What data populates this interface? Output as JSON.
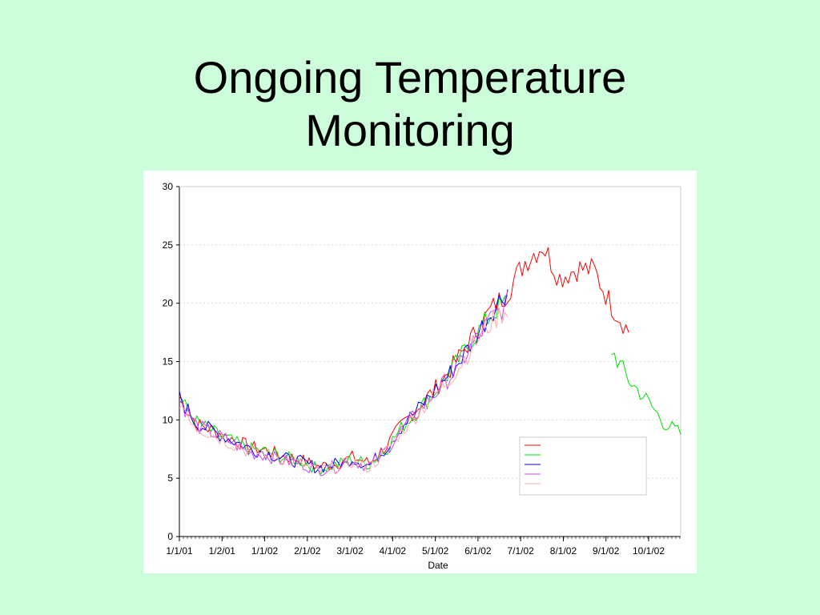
{
  "slide": {
    "title_line1": "Ongoing Temperature",
    "title_line2": "Monitoring",
    "background": "#ccfcd9"
  },
  "chart_data": {
    "type": "line",
    "title": "",
    "xlabel": "Date",
    "ylabel": "",
    "ylim": [
      0,
      30
    ],
    "yticks": [
      0,
      5,
      10,
      15,
      20,
      25,
      30
    ],
    "xticks": [
      "1/1/01",
      "1/2/01",
      "1/1/02",
      "2/1/02",
      "3/1/02",
      "4/1/02",
      "5/1/02",
      "6/1/02",
      "7/1/02",
      "8/1/02",
      "9/1/02",
      "10/1/02"
    ],
    "grid": "horizontal dotted",
    "legend_position": "center-right",
    "series": [
      {
        "name": "",
        "color": "#ff0000",
        "values": [
          12.0,
          9.6,
          9.1,
          8.4,
          7.7,
          7.4,
          6.9,
          6.6,
          6.0,
          6.2,
          6.8,
          6.3,
          7.8,
          9.8,
          11.4,
          13.0,
          15.0,
          17.2,
          19.4,
          21.0,
          23.6,
          25.0,
          22.2,
          23.0,
          22.8,
          19.8,
          17.6
        ]
      },
      {
        "name": "",
        "color": "#00e000",
        "values": [
          11.8,
          9.8,
          8.9,
          8.2,
          7.5,
          7.3,
          6.8,
          6.5,
          5.8,
          6.1,
          6.6,
          6.2,
          7.6,
          9.6,
          11.1,
          12.8,
          14.8,
          17.0,
          19.0,
          20.2,
          null,
          null,
          null,
          null,
          null,
          16.0,
          13.4,
          11.8,
          9.8,
          8.8
        ]
      },
      {
        "name": "",
        "color": "#0000ff",
        "values": [
          11.9,
          9.7,
          9.0,
          8.3,
          7.6,
          7.2,
          6.7,
          6.4,
          5.9,
          6.2,
          6.7,
          6.1,
          7.7,
          9.7,
          11.2,
          12.9,
          14.6,
          16.8,
          19.2,
          21.2
        ]
      },
      {
        "name": "",
        "color": "#cc44ff",
        "values": [
          11.7,
          9.5,
          8.8,
          8.1,
          7.2,
          7.0,
          6.5,
          6.3,
          5.7,
          6.0,
          6.5,
          6.0,
          7.5,
          9.4,
          11.0,
          12.6,
          14.3,
          16.5,
          18.6,
          20.0
        ]
      },
      {
        "name": "",
        "color": "#ffaaaa",
        "values": [
          11.6,
          9.4,
          8.7,
          8.0,
          7.3,
          7.1,
          6.6,
          6.2,
          5.6,
          5.9,
          6.4,
          5.9,
          7.4,
          9.3,
          10.9,
          12.5,
          14.2,
          16.4,
          18.3,
          19.6
        ]
      }
    ]
  }
}
